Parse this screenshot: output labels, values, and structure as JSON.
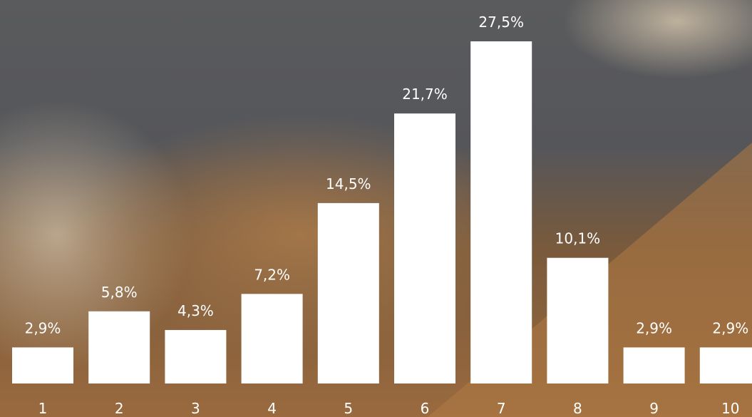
{
  "chart_data": {
    "type": "bar",
    "categories": [
      "1",
      "2",
      "3",
      "4",
      "5",
      "6",
      "7",
      "8",
      "9",
      "10"
    ],
    "values": [
      2.9,
      5.8,
      4.3,
      7.2,
      14.5,
      21.7,
      27.5,
      10.1,
      2.9,
      2.9
    ],
    "value_labels": [
      "2,9%",
      "5,8%",
      "4,3%",
      "7,2%",
      "14,5%",
      "21,7%",
      "27,5%",
      "10,1%",
      "2,9%",
      "2,9%"
    ],
    "color": "#ffffff"
  }
}
